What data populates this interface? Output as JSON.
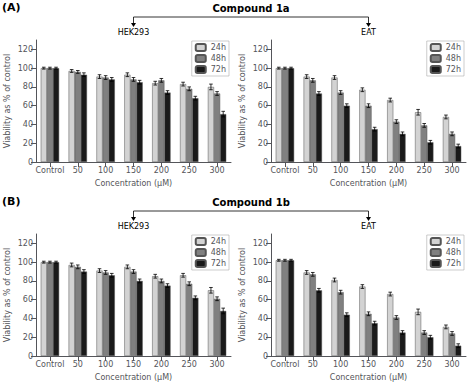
{
  "chart_data": [
    {
      "type": "bar",
      "title": "HEK293",
      "annotations": [
        "(A)",
        "Compound 1a"
      ],
      "xlabel": "Concentration (μM)",
      "ylabel": "Viability as % of control",
      "categories": [
        "Control",
        "50",
        "100",
        "150",
        "200",
        "250",
        "300"
      ],
      "series": [
        {
          "name": "24h",
          "color": "#d3d3d3",
          "values": [
            100,
            97,
            91,
            93,
            84,
            83,
            80
          ],
          "errors": [
            1,
            1.5,
            2,
            2,
            2,
            2,
            3
          ]
        },
        {
          "name": "48h",
          "color": "#808080",
          "values": [
            100,
            96,
            90,
            88,
            87,
            78,
            73
          ],
          "errors": [
            1,
            1.5,
            2,
            2,
            2,
            2,
            2
          ]
        },
        {
          "name": "72h",
          "color": "#1a1a1a",
          "values": [
            100,
            93,
            88,
            85,
            74,
            68,
            51
          ],
          "errors": [
            1,
            2,
            2,
            2,
            2,
            2,
            3
          ]
        }
      ],
      "ylim": [
        0,
        130
      ],
      "yticks": [
        0,
        20,
        40,
        60,
        80,
        100,
        120
      ],
      "grid": false,
      "legend": "upper right"
    },
    {
      "type": "bar",
      "title": "EAT",
      "xlabel": "Concentration (μM)",
      "ylabel": "Viability as % of control",
      "categories": [
        "Control",
        "50",
        "100",
        "150",
        "200",
        "250",
        "300"
      ],
      "series": [
        {
          "name": "24h",
          "color": "#d3d3d3",
          "values": [
            100,
            91,
            90,
            77,
            66,
            53,
            48
          ],
          "errors": [
            1,
            2,
            2,
            2,
            2,
            3,
            2
          ]
        },
        {
          "name": "48h",
          "color": "#808080",
          "values": [
            100,
            87,
            74,
            60,
            43,
            39,
            30
          ],
          "errors": [
            1,
            2,
            2,
            2,
            2,
            2,
            2
          ]
        },
        {
          "name": "72h",
          "color": "#1a1a1a",
          "values": [
            100,
            73,
            60,
            35,
            30,
            21,
            17
          ],
          "errors": [
            1,
            2,
            2,
            2,
            2,
            2,
            2
          ]
        }
      ],
      "ylim": [
        0,
        130
      ],
      "yticks": [
        0,
        20,
        40,
        60,
        80,
        100,
        120
      ],
      "grid": false,
      "legend": "upper right"
    },
    {
      "type": "bar",
      "title": "HEK293",
      "annotations": [
        "(B)",
        "Compound 1b"
      ],
      "xlabel": "Concentration (μM)",
      "ylabel": "Viability as % of control",
      "categories": [
        "Control",
        "50",
        "100",
        "150",
        "200",
        "250",
        "300"
      ],
      "series": [
        {
          "name": "24h",
          "color": "#d3d3d3",
          "values": [
            100,
            97,
            91,
            95,
            85,
            86,
            70
          ],
          "errors": [
            1,
            2,
            2,
            2,
            2,
            2,
            3
          ]
        },
        {
          "name": "48h",
          "color": "#808080",
          "values": [
            100,
            95,
            89,
            90,
            80,
            77,
            61
          ],
          "errors": [
            1,
            2,
            2,
            2,
            2,
            2,
            2
          ]
        },
        {
          "name": "72h",
          "color": "#1a1a1a",
          "values": [
            100,
            90,
            86,
            80,
            75,
            62,
            48
          ],
          "errors": [
            1,
            2,
            2,
            2,
            2,
            2,
            3
          ]
        }
      ],
      "ylim": [
        0,
        130
      ],
      "yticks": [
        0,
        20,
        40,
        60,
        80,
        100,
        120
      ],
      "grid": false,
      "legend": "upper right"
    },
    {
      "type": "bar",
      "title": "EAT",
      "xlabel": "Concentration (μM)",
      "ylabel": "Viability as % of control",
      "categories": [
        "Control",
        "50",
        "100",
        "150",
        "200",
        "250",
        "300"
      ],
      "series": [
        {
          "name": "24h",
          "color": "#d3d3d3",
          "values": [
            102,
            89,
            81,
            74,
            66,
            47,
            31
          ],
          "errors": [
            1,
            2,
            2,
            2,
            2,
            3,
            2
          ]
        },
        {
          "name": "48h",
          "color": "#808080",
          "values": [
            102,
            87,
            68,
            45,
            41,
            25,
            24
          ],
          "errors": [
            1,
            2,
            2,
            2,
            2,
            2,
            2
          ]
        },
        {
          "name": "72h",
          "color": "#1a1a1a",
          "values": [
            102,
            70,
            44,
            35,
            25,
            20,
            11
          ],
          "errors": [
            1,
            2,
            2,
            2,
            2,
            2,
            2
          ]
        }
      ],
      "ylim": [
        0,
        130
      ],
      "yticks": [
        0,
        20,
        40,
        60,
        80,
        100,
        120
      ],
      "grid": false,
      "legend": "upper right"
    }
  ]
}
